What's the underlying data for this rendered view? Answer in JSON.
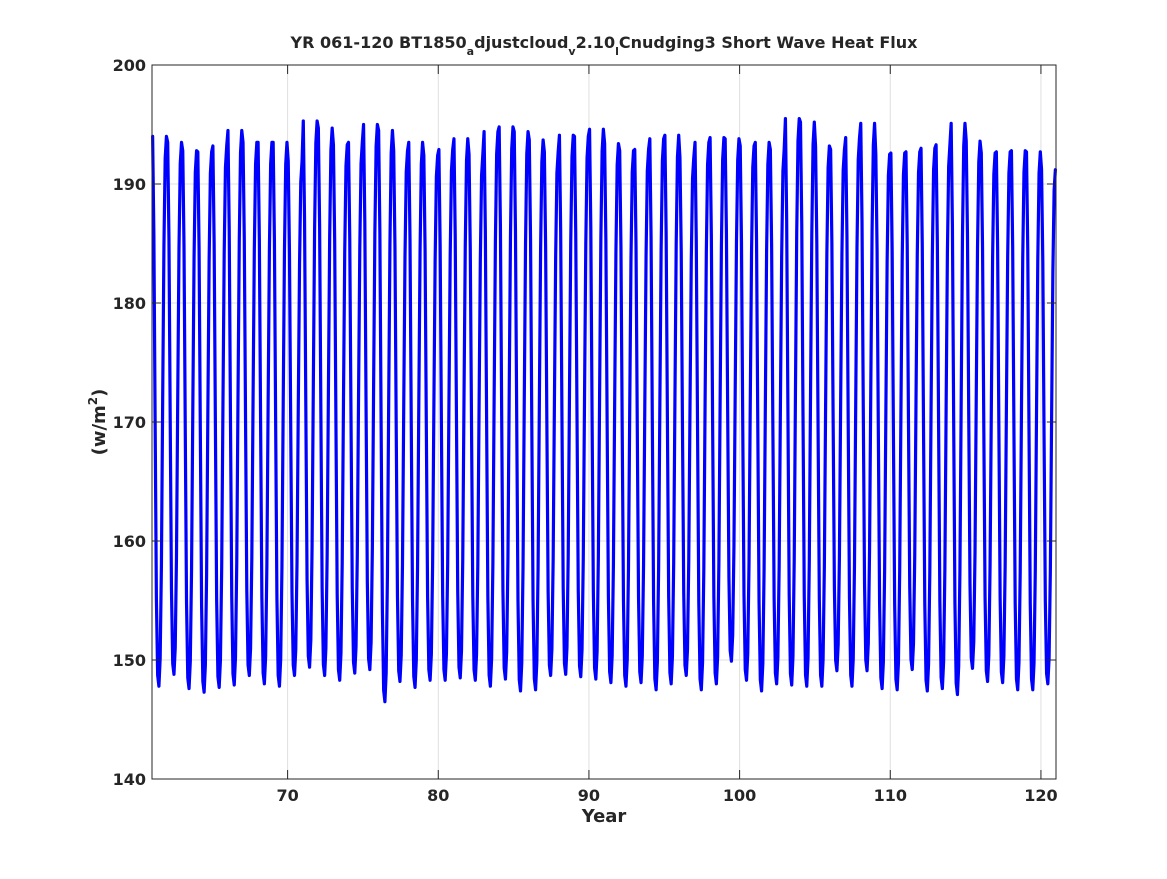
{
  "chart_data": {
    "type": "line",
    "title_parts": {
      "pre": "YR 061-120 BT1850",
      "sub_a": "a",
      "mid1": "djustcloud",
      "sub_v": "v",
      "mid2": "2.10",
      "sub_l": "l",
      "post": "Cnudging3 Short Wave Heat Flux"
    },
    "xlabel": "Year",
    "ylabel_base": "(w/m",
    "ylabel_sup": "2",
    "ylabel_end": ")",
    "xlim": [
      61,
      121
    ],
    "ylim": [
      140,
      200
    ],
    "xticks": [
      70,
      80,
      90,
      100,
      110,
      120
    ],
    "yticks": [
      140,
      150,
      160,
      170,
      180,
      190,
      200
    ],
    "grid": true,
    "line_color": "#0000ff",
    "start_year": 61,
    "n_years": 60,
    "peaks": [
      194.0,
      193.5,
      192.8,
      192.7,
      193.2,
      194.5,
      193.5,
      193.5,
      193.5,
      191.9,
      195.3,
      194.7,
      193.3,
      193.5,
      195.0,
      194.5,
      192.8,
      193.5,
      192.4,
      192.9,
      193.8,
      192.5,
      194.4,
      194.8,
      194.4,
      193.7,
      192.7,
      194.1,
      194.0,
      194.6,
      193.4,
      192.8,
      192.9,
      193.8,
      194.1,
      192.2,
      193.5,
      193.9,
      193.8,
      193.2,
      193.5,
      192.9,
      195.5,
      195.2,
      193.2,
      192.9,
      193.9,
      195.1,
      192.5,
      192.6,
      192.7,
      193.0,
      193.3,
      195.1,
      193.6,
      192.6,
      192.7,
      192.8,
      192.7,
      191.2
    ],
    "troughs": [
      147.8,
      148.8,
      147.6,
      147.3,
      147.7,
      147.9,
      148.7,
      148.0,
      147.8,
      148.7,
      149.4,
      148.7,
      148.3,
      148.9,
      149.2,
      146.5,
      148.2,
      147.7,
      148.3,
      148.3,
      148.5,
      148.3,
      147.8,
      148.4,
      147.4,
      147.5,
      148.7,
      148.8,
      148.6,
      148.4,
      148.1,
      147.8,
      148.1,
      147.5,
      148.0,
      148.7,
      147.5,
      148.0,
      149.9,
      148.3,
      147.4,
      148.0,
      147.9,
      147.8,
      147.8,
      149.1,
      147.8,
      149.1,
      147.6,
      147.5,
      149.2,
      147.4,
      147.6,
      147.1,
      149.3,
      148.2,
      148.1,
      147.5,
      147.5,
      148.0
    ]
  }
}
